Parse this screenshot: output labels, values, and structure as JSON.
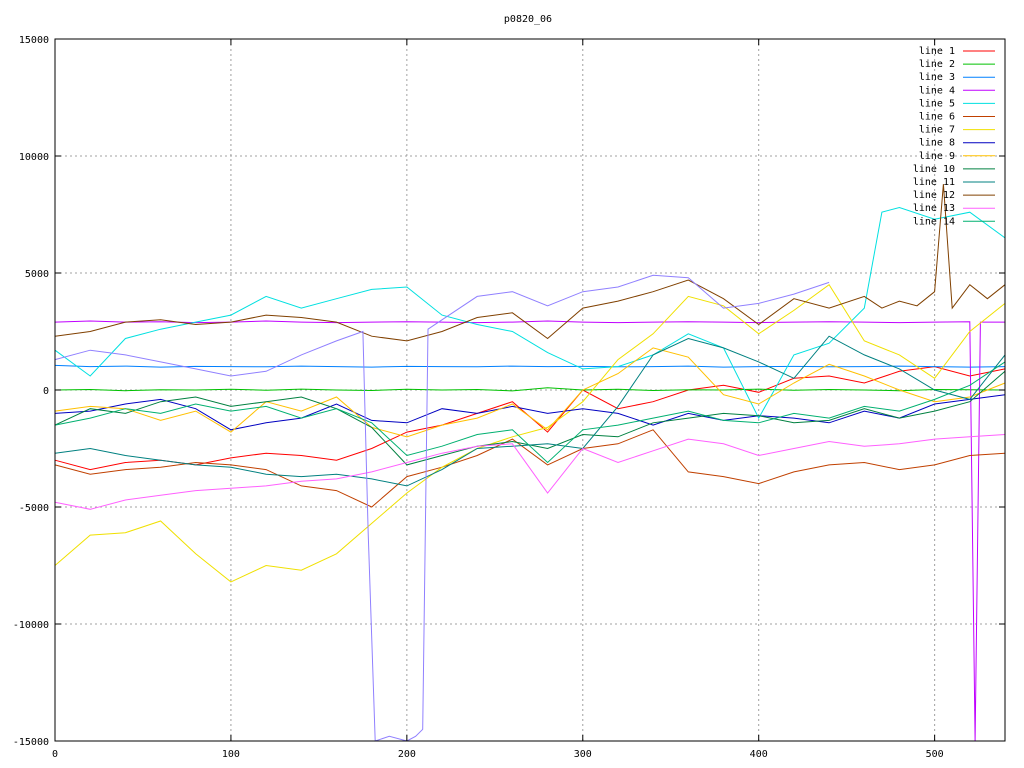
{
  "chart_data": {
    "type": "line",
    "title": "p0820_06",
    "xlabel": "",
    "ylabel": "",
    "xlim": [
      0,
      540
    ],
    "ylim": [
      -15000,
      15000
    ],
    "xticks": [
      0,
      100,
      200,
      300,
      400,
      500
    ],
    "yticks": [
      -15000,
      -10000,
      -5000,
      0,
      5000,
      10000,
      15000
    ],
    "grid": true,
    "legend_position": "top-right",
    "series": [
      {
        "name": "line 1",
        "color": "#ff0000",
        "x": [
          0,
          20,
          40,
          60,
          80,
          100,
          120,
          140,
          160,
          180,
          200,
          220,
          240,
          260,
          280,
          300,
          320,
          340,
          360,
          380,
          400,
          420,
          440,
          460,
          480,
          500,
          520,
          540
        ],
        "y": [
          -3000,
          -3400,
          -3100,
          -3000,
          -3200,
          -2900,
          -2700,
          -2800,
          -3000,
          -2500,
          -1800,
          -1500,
          -1000,
          -500,
          -1800,
          0,
          -800,
          -500,
          0,
          200,
          -100,
          500,
          600,
          300,
          800,
          1000,
          600,
          900
        ]
      },
      {
        "name": "line 2",
        "color": "#00c000",
        "x": [
          0,
          20,
          40,
          60,
          80,
          100,
          120,
          140,
          160,
          180,
          200,
          220,
          240,
          260,
          280,
          300,
          320,
          340,
          360,
          380,
          400,
          420,
          440,
          460,
          480,
          500,
          520,
          540
        ],
        "y": [
          0,
          20,
          -30,
          10,
          0,
          30,
          -10,
          40,
          0,
          -20,
          30,
          0,
          20,
          -40,
          100,
          0,
          30,
          -20,
          10,
          0,
          40,
          -10,
          20,
          0,
          -30,
          20,
          10,
          0
        ]
      },
      {
        "name": "line 3",
        "color": "#0080ff",
        "x": [
          0,
          20,
          40,
          60,
          80,
          100,
          120,
          140,
          160,
          180,
          200,
          220,
          240,
          260,
          280,
          300,
          320,
          340,
          360,
          380,
          400,
          420,
          440,
          460,
          480,
          500,
          520,
          540
        ],
        "y": [
          1050,
          1000,
          1020,
          980,
          1010,
          1000,
          990,
          1020,
          1000,
          980,
          1010,
          1000,
          990,
          1020,
          1000,
          1010,
          990,
          1000,
          1020,
          980,
          1000,
          1010,
          990,
          1000,
          1020,
          1000,
          980,
          1000
        ]
      },
      {
        "name": "line 4",
        "color": "#c000ff",
        "x": [
          0,
          20,
          40,
          60,
          80,
          100,
          120,
          140,
          160,
          180,
          200,
          220,
          240,
          260,
          280,
          300,
          320,
          340,
          360,
          380,
          400,
          420,
          440,
          460,
          480,
          500,
          520,
          523,
          526,
          530,
          540
        ],
        "y": [
          2900,
          2950,
          2900,
          2920,
          2880,
          2900,
          2950,
          2900,
          2880,
          2900,
          2920,
          2900,
          2880,
          2900,
          2950,
          2900,
          2880,
          2900,
          2920,
          2900,
          2880,
          2900,
          2920,
          2900,
          2880,
          2900,
          2920,
          -15000,
          2900,
          2900,
          2900
        ]
      },
      {
        "name": "line 5",
        "color": "#00e0e0",
        "x": [
          0,
          20,
          40,
          60,
          80,
          100,
          120,
          140,
          160,
          180,
          200,
          220,
          240,
          260,
          280,
          300,
          320,
          340,
          360,
          380,
          400,
          420,
          440,
          460,
          470,
          480,
          500,
          520,
          540
        ],
        "y": [
          1700,
          600,
          2200,
          2600,
          2900,
          3200,
          4000,
          3500,
          3900,
          4300,
          4400,
          3200,
          2800,
          2500,
          1600,
          900,
          1000,
          1500,
          2400,
          1800,
          -1200,
          1500,
          2000,
          3500,
          7600,
          7800,
          7300,
          7600,
          6500
        ]
      },
      {
        "name": "line 6",
        "color": "#c04000",
        "x": [
          0,
          20,
          40,
          60,
          80,
          100,
          120,
          140,
          160,
          180,
          200,
          220,
          240,
          260,
          280,
          300,
          320,
          340,
          360,
          380,
          400,
          420,
          440,
          460,
          480,
          500,
          520,
          540
        ],
        "y": [
          -3200,
          -3600,
          -3400,
          -3300,
          -3100,
          -3200,
          -3400,
          -4100,
          -4300,
          -5000,
          -3700,
          -3300,
          -2800,
          -2100,
          -3200,
          -2500,
          -2300,
          -1700,
          -3500,
          -3700,
          -4000,
          -3500,
          -3200,
          -3100,
          -3400,
          -3200,
          -2800,
          -2700
        ]
      },
      {
        "name": "line 7",
        "color": "#f0e000",
        "x": [
          0,
          20,
          40,
          60,
          80,
          100,
          120,
          140,
          160,
          180,
          200,
          220,
          240,
          260,
          280,
          300,
          320,
          340,
          360,
          380,
          400,
          420,
          440,
          460,
          480,
          500,
          520,
          540
        ],
        "y": [
          -7500,
          -6200,
          -6100,
          -5600,
          -7000,
          -8200,
          -7500,
          -7700,
          -7000,
          -5700,
          -4400,
          -3300,
          -2500,
          -2000,
          -1600,
          -500,
          1300,
          2400,
          4000,
          3600,
          2400,
          3400,
          4500,
          2100,
          1500,
          500,
          2500,
          3700
        ]
      },
      {
        "name": "line 8",
        "color": "#0000c0",
        "x": [
          0,
          20,
          40,
          60,
          80,
          100,
          120,
          140,
          160,
          180,
          200,
          220,
          240,
          260,
          280,
          300,
          320,
          340,
          360,
          380,
          400,
          420,
          440,
          460,
          480,
          500,
          520,
          540
        ],
        "y": [
          -1000,
          -900,
          -600,
          -400,
          -800,
          -1700,
          -1400,
          -1200,
          -600,
          -1300,
          -1400,
          -800,
          -1000,
          -700,
          -1000,
          -800,
          -1000,
          -1500,
          -1000,
          -1300,
          -1100,
          -1200,
          -1400,
          -900,
          -1200,
          -600,
          -400,
          -200
        ]
      },
      {
        "name": "line 9",
        "color": "#ffc000",
        "x": [
          0,
          20,
          40,
          60,
          80,
          100,
          120,
          140,
          160,
          180,
          200,
          220,
          240,
          260,
          280,
          300,
          320,
          340,
          360,
          380,
          400,
          420,
          440,
          460,
          480,
          500,
          520,
          540
        ],
        "y": [
          -900,
          -700,
          -800,
          -1300,
          -900,
          -1800,
          -500,
          -900,
          -300,
          -1600,
          -2000,
          -1500,
          -1200,
          -600,
          -1700,
          0,
          700,
          1800,
          1400,
          -200,
          -600,
          300,
          1100,
          600,
          0,
          -500,
          -300,
          300
        ]
      },
      {
        "name": "line 10",
        "color": "#008040",
        "x": [
          0,
          20,
          40,
          60,
          80,
          100,
          120,
          140,
          160,
          180,
          200,
          220,
          240,
          260,
          280,
          300,
          320,
          340,
          360,
          380,
          400,
          420,
          440,
          460,
          480,
          500,
          520,
          540
        ],
        "y": [
          -1500,
          -800,
          -1000,
          -500,
          -300,
          -700,
          -500,
          -300,
          -800,
          -1600,
          -3200,
          -2800,
          -2400,
          -2200,
          -2500,
          -1900,
          -2000,
          -1400,
          -1200,
          -1000,
          -1100,
          -1400,
          -1300,
          -800,
          -1200,
          -900,
          -500,
          800
        ]
      },
      {
        "name": "line 11",
        "color": "#008080",
        "x": [
          0,
          20,
          40,
          60,
          80,
          100,
          120,
          140,
          160,
          180,
          200,
          220,
          240,
          260,
          280,
          300,
          320,
          340,
          360,
          380,
          400,
          420,
          440,
          460,
          480,
          500,
          520,
          540
        ],
        "y": [
          -2700,
          -2500,
          -2800,
          -3000,
          -3200,
          -3300,
          -3600,
          -3700,
          -3600,
          -3800,
          -4100,
          -3400,
          -2500,
          -2400,
          -2300,
          -2500,
          -700,
          1500,
          2200,
          1800,
          1200,
          500,
          2300,
          1500,
          900,
          0,
          -400,
          1500
        ]
      },
      {
        "name": "line 12",
        "color": "#804000",
        "x": [
          0,
          20,
          40,
          60,
          80,
          100,
          120,
          140,
          160,
          180,
          200,
          220,
          240,
          260,
          280,
          300,
          320,
          340,
          360,
          380,
          400,
          420,
          440,
          460,
          470,
          480,
          490,
          500,
          505,
          510,
          520,
          530,
          540
        ],
        "y": [
          2300,
          2500,
          2900,
          3000,
          2800,
          2900,
          3200,
          3100,
          2900,
          2300,
          2100,
          2500,
          3100,
          3300,
          2200,
          3500,
          3800,
          4200,
          4700,
          3900,
          2800,
          3900,
          3500,
          4000,
          3500,
          3800,
          3600,
          4200,
          8800,
          3500,
          4500,
          3900,
          4500
        ]
      },
      {
        "name": "line 13",
        "color": "#ff60ff",
        "x": [
          0,
          20,
          40,
          60,
          80,
          100,
          120,
          140,
          160,
          180,
          200,
          220,
          240,
          260,
          280,
          300,
          320,
          340,
          360,
          380,
          400,
          420,
          440,
          460,
          480,
          500,
          520,
          540
        ],
        "y": [
          -4800,
          -5100,
          -4700,
          -4500,
          -4300,
          -4200,
          -4100,
          -3900,
          -3800,
          -3500,
          -3100,
          -2700,
          -2400,
          -2300,
          -4400,
          -2500,
          -3100,
          -2600,
          -2100,
          -2300,
          -2800,
          -2500,
          -2200,
          -2400,
          -2300,
          -2100,
          -2000,
          -1900
        ]
      },
      {
        "name": "line 14",
        "color": "#00b070",
        "x": [
          0,
          20,
          40,
          60,
          80,
          100,
          120,
          140,
          160,
          180,
          200,
          220,
          240,
          260,
          280,
          300,
          320,
          340,
          360,
          380,
          400,
          420,
          440,
          460,
          480,
          500,
          520,
          540
        ],
        "y": [
          -1500,
          -1200,
          -800,
          -1000,
          -600,
          -900,
          -700,
          -1200,
          -800,
          -1400,
          -2800,
          -2400,
          -1900,
          -1700,
          -3100,
          -1700,
          -1500,
          -1200,
          -900,
          -1300,
          -1400,
          -1000,
          -1200,
          -700,
          -900,
          -400,
          200,
          1200
        ]
      },
      {
        "name": "",
        "color": "#9080ff",
        "x": [
          0,
          20,
          40,
          60,
          80,
          100,
          120,
          140,
          160,
          175,
          178,
          182,
          190,
          200,
          205,
          209,
          212,
          220,
          240,
          260,
          280,
          300,
          320,
          340,
          360,
          380,
          400,
          420,
          440
        ],
        "y": [
          1300,
          1700,
          1500,
          1200,
          900,
          600,
          800,
          1500,
          2100,
          2500,
          -6000,
          -15000,
          -14800,
          -15000,
          -14800,
          -14500,
          2600,
          3000,
          4000,
          4200,
          3600,
          4200,
          4400,
          4900,
          4800,
          3500,
          3700,
          4100,
          4600
        ]
      }
    ]
  }
}
